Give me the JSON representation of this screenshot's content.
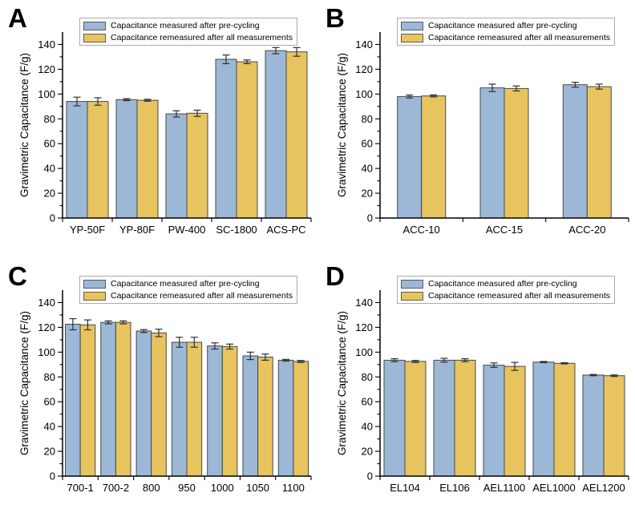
{
  "figure": {
    "background": "#ffffff",
    "ylabel": "Gravimetric Capacitance (F/g)",
    "legend": [
      "Capacitance measured after pre-cycling",
      "Capacitance remeasured after all measurements"
    ],
    "colors": {
      "pre_cycling_fill": "#9cb8d6",
      "remeasured_fill": "#e8c45f",
      "bar_edge": "#44484e",
      "error_bar": "#2f2f2f",
      "axis": "#000000",
      "legend_border": "#ababab"
    }
  },
  "chart_data": [
    {
      "panel": "A",
      "type": "bar",
      "categories": [
        "YP-50F",
        "YP-80F",
        "PW-400",
        "SC-1800",
        "ACS-PC"
      ],
      "series": [
        {
          "name": "Capacitance measured after pre-cycling",
          "values": [
            94,
            95.5,
            84,
            128,
            135
          ],
          "errors": [
            3.5,
            0.8,
            2.5,
            3.5,
            2.5
          ]
        },
        {
          "name": "Capacitance remeasured after all measurements",
          "values": [
            94,
            95,
            84.5,
            126,
            134
          ],
          "errors": [
            3,
            0.8,
            2.5,
            1.5,
            3.5
          ]
        }
      ],
      "ylabel": "Gravimetric Capacitance (F/g)",
      "ylim": [
        0,
        150
      ],
      "yticks": [
        0,
        20,
        40,
        60,
        80,
        100,
        120,
        140
      ],
      "minor_step": 10,
      "grid": false,
      "legend_position": "top-left-inside"
    },
    {
      "panel": "B",
      "type": "bar",
      "categories": [
        "ACC-10",
        "ACC-15",
        "ACC-20"
      ],
      "series": [
        {
          "name": "Capacitance measured after pre-cycling",
          "values": [
            98,
            105,
            107.5
          ],
          "errors": [
            1.2,
            3,
            2
          ]
        },
        {
          "name": "Capacitance remeasured after all measurements",
          "values": [
            98.5,
            104.5,
            106
          ],
          "errors": [
            0.8,
            2,
            2
          ]
        }
      ],
      "ylabel": "Gravimetric Capacitance (F/g)",
      "ylim": [
        0,
        150
      ],
      "yticks": [
        0,
        20,
        40,
        60,
        80,
        100,
        120,
        140
      ],
      "minor_step": 10,
      "grid": false,
      "legend_position": "top-left-inside"
    },
    {
      "panel": "C",
      "type": "bar",
      "categories": [
        "700-1",
        "700-2",
        "800",
        "950",
        "1000",
        "1050",
        "1100"
      ],
      "series": [
        {
          "name": "Capacitance measured after pre-cycling",
          "values": [
            122.5,
            124,
            117,
            108,
            105,
            97,
            93.5
          ],
          "errors": [
            4.5,
            1.2,
            1.2,
            4,
            2.5,
            3,
            0.7
          ]
        },
        {
          "name": "Capacitance remeasured after all measurements",
          "values": [
            122,
            124,
            115.5,
            108,
            104.5,
            96,
            92.5
          ],
          "errors": [
            4,
            1.2,
            3,
            4,
            2,
            2.5,
            0.8
          ]
        }
      ],
      "ylabel": "Gravimetric Capacitance (F/g)",
      "ylim": [
        0,
        150
      ],
      "yticks": [
        0,
        20,
        40,
        60,
        80,
        100,
        120,
        140
      ],
      "minor_step": 10,
      "grid": false,
      "legend_position": "top-left-inside"
    },
    {
      "panel": "D",
      "type": "bar",
      "categories": [
        "EL104",
        "EL106",
        "AEL1100",
        "AEL1000",
        "AEL1200"
      ],
      "series": [
        {
          "name": "Capacitance measured after pre-cycling",
          "values": [
            93.5,
            93.5,
            89.5,
            92,
            81.5
          ],
          "errors": [
            1.2,
            1.5,
            1.8,
            0.5,
            0.5
          ]
        },
        {
          "name": "Capacitance remeasured after all measurements",
          "values": [
            92.5,
            93.5,
            88.5,
            91,
            81
          ],
          "errors": [
            0.8,
            1.2,
            3.2,
            0.5,
            0.6
          ]
        }
      ],
      "ylabel": "Gravimetric Capacitance (F/g)",
      "ylim": [
        0,
        150
      ],
      "yticks": [
        0,
        20,
        40,
        60,
        80,
        100,
        120,
        140
      ],
      "minor_step": 10,
      "grid": false,
      "legend_position": "top-left-inside"
    }
  ]
}
